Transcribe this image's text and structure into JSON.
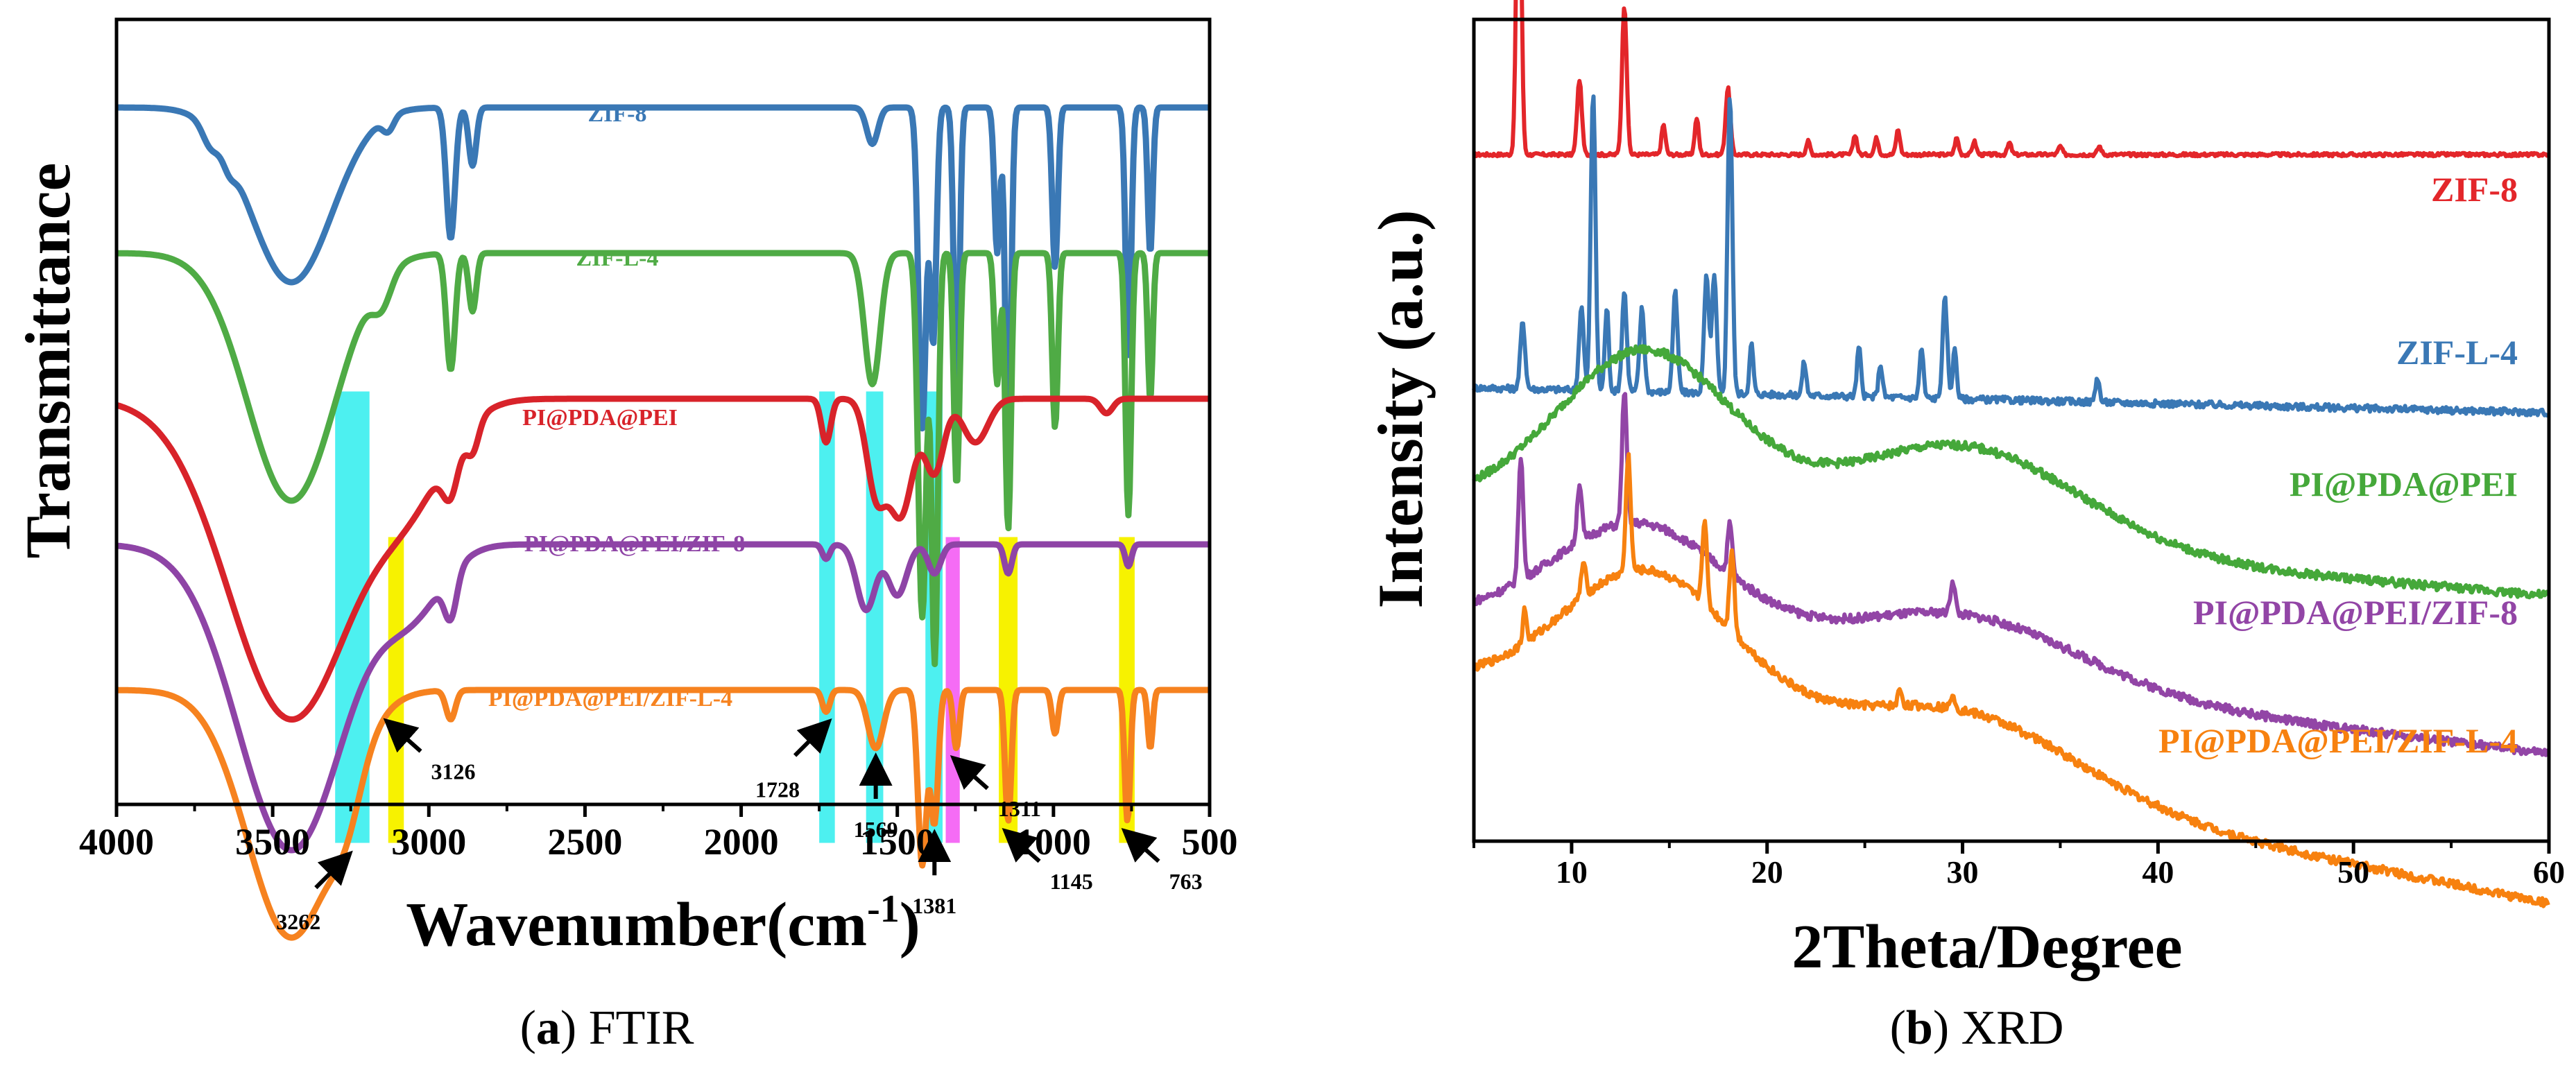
{
  "chart_data": [
    {
      "type": "line",
      "panel_caption_letter": "a",
      "panel_caption_text": "FTIR",
      "xlabel_main": "Wavenumber(cm",
      "xlabel_sup": "-1",
      "xlabel_close": ")",
      "ylabel": "Transmittance",
      "xlim": [
        4000,
        500
      ],
      "xticks": [
        "4000",
        "3500",
        "3000",
        "2500",
        "2000",
        "1500",
        "1000",
        "500"
      ],
      "xtick_values": [
        4000,
        3500,
        3000,
        2500,
        2000,
        1500,
        1000,
        500
      ],
      "series": [
        {
          "name": "ZIF-8",
          "color": "#3a78b5",
          "baseline": 4.5,
          "features": [
            [
              3440,
              1.2,
              130
            ],
            [
              3700,
              0.12,
              25
            ],
            [
              3640,
              0.1,
              20
            ],
            [
              3130,
              0.1,
              18
            ],
            [
              2930,
              0.9,
              14
            ],
            [
              2860,
              0.4,
              12
            ],
            [
              1580,
              0.25,
              18
            ],
            [
              1420,
              2.2,
              12
            ],
            [
              1385,
              1.6,
              10
            ],
            [
              1310,
              2.0,
              9
            ],
            [
              1180,
              1.0,
              9
            ],
            [
              1145,
              2.5,
              9
            ],
            [
              995,
              1.1,
              9
            ],
            [
              760,
              1.7,
              9
            ],
            [
              690,
              1.0,
              8
            ]
          ]
        },
        {
          "name": "ZIF-L-4",
          "color": "#4fab45",
          "baseline": 3.5,
          "features": [
            [
              3440,
              1.7,
              140
            ],
            [
              3150,
              0.2,
              30
            ],
            [
              2930,
              0.8,
              14
            ],
            [
              2860,
              0.4,
              12
            ],
            [
              1580,
              0.9,
              25
            ],
            [
              1420,
              2.5,
              13
            ],
            [
              1380,
              2.8,
              10
            ],
            [
              1310,
              1.6,
              9
            ],
            [
              1180,
              0.9,
              9
            ],
            [
              1145,
              1.9,
              9
            ],
            [
              995,
              1.2,
              9
            ],
            [
              760,
              1.8,
              9
            ],
            [
              690,
              1.0,
              8
            ]
          ]
        },
        {
          "name": "PI@PDA@PEI",
          "color": "#d8232a",
          "baseline": 2.5,
          "features": [
            [
              3440,
              2.2,
              200
            ],
            [
              3050,
              0.5,
              120
            ],
            [
              2930,
              0.3,
              25
            ],
            [
              2860,
              0.2,
              20
            ],
            [
              1728,
              0.3,
              15
            ],
            [
              1569,
              0.6,
              30
            ],
            [
              1490,
              0.8,
              40
            ],
            [
              1381,
              0.5,
              30
            ],
            [
              1250,
              0.3,
              40
            ],
            [
              830,
              0.1,
              20
            ]
          ]
        },
        {
          "name": "PI@PDA@PEI/ZIF-8",
          "color": "#8e44a6",
          "baseline": 1.5,
          "features": [
            [
              3440,
              2.1,
              170
            ],
            [
              3050,
              0.4,
              100
            ],
            [
              2930,
              0.3,
              20
            ],
            [
              1728,
              0.1,
              12
            ],
            [
              1600,
              0.45,
              30
            ],
            [
              1500,
              0.35,
              30
            ],
            [
              1381,
              0.2,
              20
            ],
            [
              1145,
              0.2,
              12
            ],
            [
              760,
              0.15,
              10
            ]
          ]
        },
        {
          "name": "PI@PDA@PEI/ZIF-L-4",
          "color": "#f6821f",
          "baseline": 0.5,
          "features": [
            [
              3440,
              1.7,
              140
            ],
            [
              3262,
              0.3,
              50
            ],
            [
              2930,
              0.2,
              15
            ],
            [
              1728,
              0.15,
              12
            ],
            [
              1569,
              0.4,
              25
            ],
            [
              1420,
              1.2,
              14
            ],
            [
              1381,
              0.9,
              12
            ],
            [
              1311,
              0.4,
              10
            ],
            [
              1145,
              0.9,
              10
            ],
            [
              995,
              0.3,
              10
            ],
            [
              763,
              0.9,
              9
            ],
            [
              690,
              0.4,
              8
            ]
          ]
        }
      ],
      "highlight_bands": [
        {
          "from": 3300,
          "to": 3190,
          "color": "#4df0f0",
          "top_series": "PI@PDA@PEI"
        },
        {
          "from": 3130,
          "to": 3080,
          "color": "#f7f200",
          "top_series": "PI@PDA@PEI/ZIF-8"
        },
        {
          "from": 1750,
          "to": 1700,
          "color": "#4df0f0",
          "top_series": "PI@PDA@PEI"
        },
        {
          "from": 1600,
          "to": 1545,
          "color": "#4df0f0",
          "top_series": "PI@PDA@PEI"
        },
        {
          "from": 1410,
          "to": 1355,
          "color": "#4df0f0",
          "top_series": "PI@PDA@PEI"
        },
        {
          "from": 1345,
          "to": 1300,
          "color": "#f56cf5",
          "top_series": "PI@PDA@PEI/ZIF-8"
        },
        {
          "from": 1175,
          "to": 1115,
          "color": "#f7f200",
          "top_series": "PI@PDA@PEI/ZIF-8"
        },
        {
          "from": 790,
          "to": 740,
          "color": "#f7f200",
          "top_series": "PI@PDA@PEI/ZIF-8"
        }
      ],
      "annotations": [
        {
          "label": "3262",
          "tip": 3262,
          "dir": "down-left"
        },
        {
          "label": "3126",
          "tip": 3126,
          "dir": "down-right"
        },
        {
          "label": "1728",
          "tip": 1728,
          "dir": "down-left"
        },
        {
          "label": "1569",
          "tip": 1569,
          "dir": "down"
        },
        {
          "label": "1381",
          "tip": 1381,
          "dir": "down"
        },
        {
          "label": "1311",
          "tip": 1311,
          "dir": "down-right"
        },
        {
          "label": "1145",
          "tip": 1145,
          "dir": "down-right"
        },
        {
          "label": "763",
          "tip": 763,
          "dir": "down-right"
        }
      ]
    },
    {
      "type": "line",
      "panel_caption_letter": "b",
      "panel_caption_text": "XRD",
      "xlabel": "2Theta/Degree",
      "ylabel": "Intensity (a.u.)",
      "xlim": [
        5,
        60
      ],
      "xticks": [
        "10",
        "20",
        "30",
        "40",
        "50",
        "60"
      ],
      "xtick_values": [
        10,
        20,
        30,
        40,
        50,
        60
      ],
      "series": [
        {
          "name": "ZIF-8",
          "color": "#e3262a",
          "baseline": 4.0,
          "peaks": [
            [
              7.3,
              2.2,
              0.12
            ],
            [
              10.4,
              0.45,
              0.12
            ],
            [
              12.7,
              0.9,
              0.12
            ],
            [
              14.7,
              0.18,
              0.1
            ],
            [
              16.4,
              0.22,
              0.1
            ],
            [
              18.0,
              0.4,
              0.12
            ],
            [
              22.1,
              0.08,
              0.1
            ],
            [
              24.5,
              0.12,
              0.1
            ],
            [
              25.6,
              0.1,
              0.1
            ],
            [
              26.7,
              0.15,
              0.1
            ],
            [
              29.7,
              0.1,
              0.1
            ],
            [
              30.6,
              0.08,
              0.1
            ],
            [
              32.4,
              0.07,
              0.1
            ],
            [
              35.0,
              0.05,
              0.1
            ],
            [
              37.0,
              0.05,
              0.1
            ]
          ],
          "noise": 0.02,
          "hump": []
        },
        {
          "name": "ZIF-L-4",
          "color": "#3a78b5",
          "baseline": 2.6,
          "peaks": [
            [
              7.5,
              0.4,
              0.12
            ],
            [
              10.5,
              0.5,
              0.12
            ],
            [
              11.1,
              1.8,
              0.12
            ],
            [
              11.8,
              0.5,
              0.1
            ],
            [
              12.7,
              0.6,
              0.12
            ],
            [
              13.6,
              0.5,
              0.12
            ],
            [
              15.3,
              0.6,
              0.12
            ],
            [
              16.9,
              0.7,
              0.12
            ],
            [
              17.3,
              0.7,
              0.12
            ],
            [
              18.1,
              1.8,
              0.12
            ],
            [
              19.2,
              0.3,
              0.1
            ],
            [
              21.9,
              0.2,
              0.1
            ],
            [
              24.7,
              0.3,
              0.1
            ],
            [
              25.8,
              0.2,
              0.1
            ],
            [
              27.9,
              0.3,
              0.1
            ],
            [
              29.1,
              0.6,
              0.12
            ],
            [
              29.6,
              0.3,
              0.1
            ],
            [
              36.9,
              0.15,
              0.1
            ]
          ],
          "noise": 0.04,
          "hump": [],
          "slope": -0.15
        },
        {
          "name": "PI@PDA@PEI",
          "color": "#45a83a",
          "baseline": 1.9,
          "peaks": [],
          "noise": 0.05,
          "hump": [
            [
              13.8,
              1.0,
              4.5
            ],
            [
              30.0,
              0.6,
              6.0
            ]
          ],
          "slope": -0.55
        },
        {
          "name": "PI@PDA@PEI/ZIF-8",
          "color": "#9245a6",
          "baseline": 1.2,
          "peaks": [
            [
              7.4,
              0.75,
              0.12
            ],
            [
              10.4,
              0.35,
              0.12
            ],
            [
              12.7,
              0.8,
              0.12
            ],
            [
              18.1,
              0.3,
              0.12
            ],
            [
              29.5,
              0.2,
              0.12
            ]
          ],
          "noise": 0.05,
          "hump": [
            [
              13.5,
              0.7,
              4.5
            ],
            [
              30.0,
              0.4,
              6.0
            ]
          ],
          "slope": -0.8
        },
        {
          "name": "PI@PDA@PEI/ZIF-L-4",
          "color": "#f7810f",
          "baseline": 0.8,
          "peaks": [
            [
              7.6,
              0.2,
              0.1
            ],
            [
              10.6,
              0.2,
              0.12
            ],
            [
              12.9,
              0.7,
              0.12
            ],
            [
              16.8,
              0.5,
              0.12
            ],
            [
              18.2,
              0.5,
              0.12
            ],
            [
              26.8,
              0.1,
              0.1
            ],
            [
              29.5,
              0.1,
              0.1
            ]
          ],
          "noise": 0.05,
          "hump": [
            [
              14.0,
              0.9,
              4.5
            ],
            [
              30.0,
              0.45,
              6.0
            ]
          ],
          "slope": -1.3
        }
      ]
    }
  ]
}
